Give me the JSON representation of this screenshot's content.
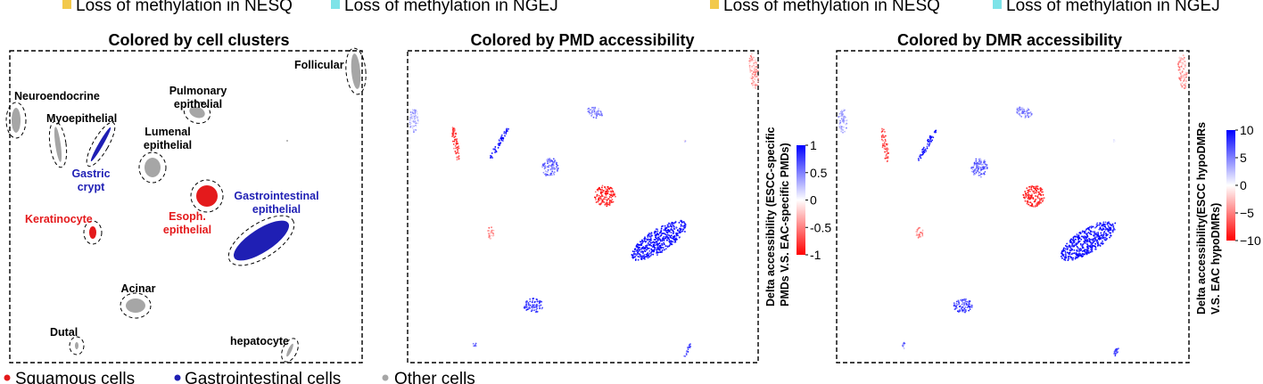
{
  "top_legend": {
    "left": [
      {
        "label": "Loss of methylation in NESQ",
        "color": "#f2c94c"
      },
      {
        "label": "Loss of methylation in NGEJ",
        "color": "#7ee3e8"
      }
    ],
    "right": [
      {
        "label": "Loss of methylation in NESQ",
        "color": "#f2c94c"
      },
      {
        "label": "Loss of methylation in NGEJ",
        "color": "#7ee3e8"
      }
    ]
  },
  "bottom_legend": [
    {
      "label": "Squamous cells",
      "color": "#e41a1c"
    },
    {
      "label": "Gastrointestinal cells",
      "color": "#1f1fb4"
    },
    {
      "label": "Other cells",
      "color": "#a6a6a6"
    }
  ],
  "colors": {
    "squamous": "#e41a1c",
    "gastrointestinal": "#1f1fb4",
    "other": "#a6a6a6",
    "scale_low": "#ff0000",
    "scale_mid": "#ffffff",
    "scale_high": "#0000ff"
  },
  "chart_data": [
    {
      "type": "scatter",
      "title": "Colored by cell clusters",
      "clusters": [
        {
          "label": "Follicular",
          "group": "other"
        },
        {
          "label": "Neuroendocrine",
          "group": "other"
        },
        {
          "label": "Myoepithelial",
          "group": "other"
        },
        {
          "label": "Pulmonary\nepithelial",
          "group": "other"
        },
        {
          "label": "Lumenal\nepithelial",
          "group": "other"
        },
        {
          "label": "Gastric\ncrypt",
          "group": "gastrointestinal"
        },
        {
          "label": "Keratinocyte",
          "group": "squamous"
        },
        {
          "label": "Esoph.\nepithelial",
          "group": "squamous"
        },
        {
          "label": "Gastrointestinal\nepithelial",
          "group": "gastrointestinal"
        },
        {
          "label": "Acinar",
          "group": "other"
        },
        {
          "label": "Dutal",
          "group": "other"
        },
        {
          "label": "hepatocyte",
          "group": "other"
        }
      ]
    },
    {
      "type": "scatter",
      "title": "Colored by PMD accessibility",
      "colorbar": {
        "label": [
          "Delta accessibility (ESCC-specific",
          "PMDs V.S. EAC-specific PMDs)"
        ],
        "range": [
          -1,
          1
        ],
        "ticks": [
          "1",
          "0.5",
          "0",
          "-0.5",
          "-1"
        ],
        "tick_values": [
          1,
          0.5,
          0,
          -0.5,
          -1
        ]
      }
    },
    {
      "type": "scatter",
      "title": "Colored by DMR accessibility",
      "colorbar": {
        "label": [
          "Delta accessibility(ESCC hypoDMRs",
          "V.S. EAC hypoDMRs)"
        ],
        "range": [
          -10,
          10
        ],
        "ticks": [
          "10",
          "5",
          "0",
          "−5",
          "−10"
        ],
        "tick_values": [
          10,
          5,
          0,
          -5,
          -10
        ]
      }
    }
  ]
}
